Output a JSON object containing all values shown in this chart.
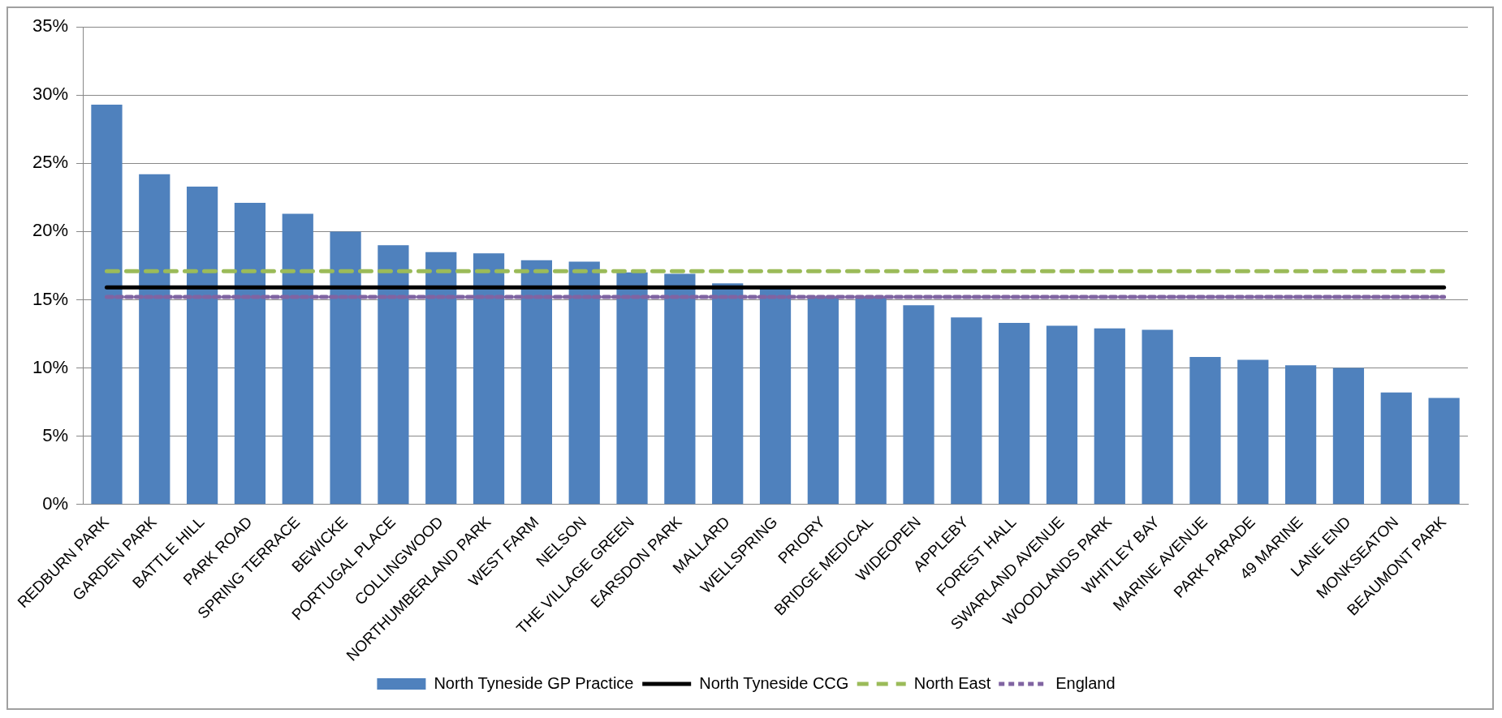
{
  "chart_data": {
    "type": "bar",
    "categories": [
      "REDBURN PARK",
      "GARDEN PARK",
      "BATTLE HILL",
      "PARK ROAD",
      "SPRING TERRACE",
      "BEWICKE",
      "PORTUGAL PLACE",
      "COLLINGWOOD",
      "NORTHUMBERLAND PARK",
      "WEST FARM",
      "NELSON",
      "THE VILLAGE GREEN",
      "EARSDON PARK",
      "MALLARD",
      "WELLSPRING",
      "PRIORY",
      "BRIDGE MEDICAL",
      "WIDEOPEN",
      "APPLEBY",
      "FOREST HALL",
      "SWARLAND AVENUE",
      "WOODLANDS PARK",
      "WHITLEY BAY",
      "MARINE AVENUE",
      "PARK PARADE",
      "49 MARINE",
      "LANE END",
      "MONKSEATON",
      "BEAUMONT PARK"
    ],
    "series": [
      {
        "name": "North Tyneside GP Practice",
        "color": "#4f81bd",
        "values": [
          29.3,
          24.2,
          23.3,
          22.1,
          21.3,
          20.0,
          19.0,
          18.5,
          18.4,
          17.9,
          17.8,
          17.0,
          16.9,
          16.2,
          15.8,
          15.2,
          15.2,
          14.6,
          13.7,
          13.3,
          13.1,
          12.9,
          12.8,
          10.8,
          10.6,
          10.2,
          10.0,
          8.2,
          7.8
        ]
      },
      {
        "name": "North Tyneside CCG",
        "type": "line",
        "color": "#000000",
        "line_style": "solid",
        "values": [
          15.9,
          15.9,
          15.9,
          15.9,
          15.9,
          15.9,
          15.9,
          15.9,
          15.9,
          15.9,
          15.9,
          15.9,
          15.9,
          15.9,
          15.9,
          15.9,
          15.9,
          15.9,
          15.9,
          15.9,
          15.9,
          15.9,
          15.9,
          15.9,
          15.9,
          15.9,
          15.9,
          15.9,
          15.9
        ]
      },
      {
        "name": "North East",
        "type": "line",
        "color": "#9bbb59",
        "line_style": "dashed",
        "values": [
          17.1,
          17.1,
          17.1,
          17.1,
          17.1,
          17.1,
          17.1,
          17.1,
          17.1,
          17.1,
          17.1,
          17.1,
          17.1,
          17.1,
          17.1,
          17.1,
          17.1,
          17.1,
          17.1,
          17.1,
          17.1,
          17.1,
          17.1,
          17.1,
          17.1,
          17.1,
          17.1,
          17.1,
          17.1
        ]
      },
      {
        "name": "England",
        "type": "line",
        "color": "#8064a2",
        "line_style": "dotted",
        "values": [
          15.2,
          15.2,
          15.2,
          15.2,
          15.2,
          15.2,
          15.2,
          15.2,
          15.2,
          15.2,
          15.2,
          15.2,
          15.2,
          15.2,
          15.2,
          15.2,
          15.2,
          15.2,
          15.2,
          15.2,
          15.2,
          15.2,
          15.2,
          15.2,
          15.2,
          15.2,
          15.2,
          15.2,
          15.2
        ]
      }
    ],
    "ylim": [
      0,
      35
    ],
    "yticks": [
      {
        "value": 0,
        "label": "0%"
      },
      {
        "value": 5,
        "label": "5%"
      },
      {
        "value": 10,
        "label": "10%"
      },
      {
        "value": 15,
        "label": "15%"
      },
      {
        "value": 20,
        "label": "20%"
      },
      {
        "value": 25,
        "label": "25%"
      },
      {
        "value": 30,
        "label": "30%"
      },
      {
        "value": 35,
        "label": "35%"
      }
    ],
    "grid": "y",
    "legend": "bottom",
    "marker": "none"
  }
}
